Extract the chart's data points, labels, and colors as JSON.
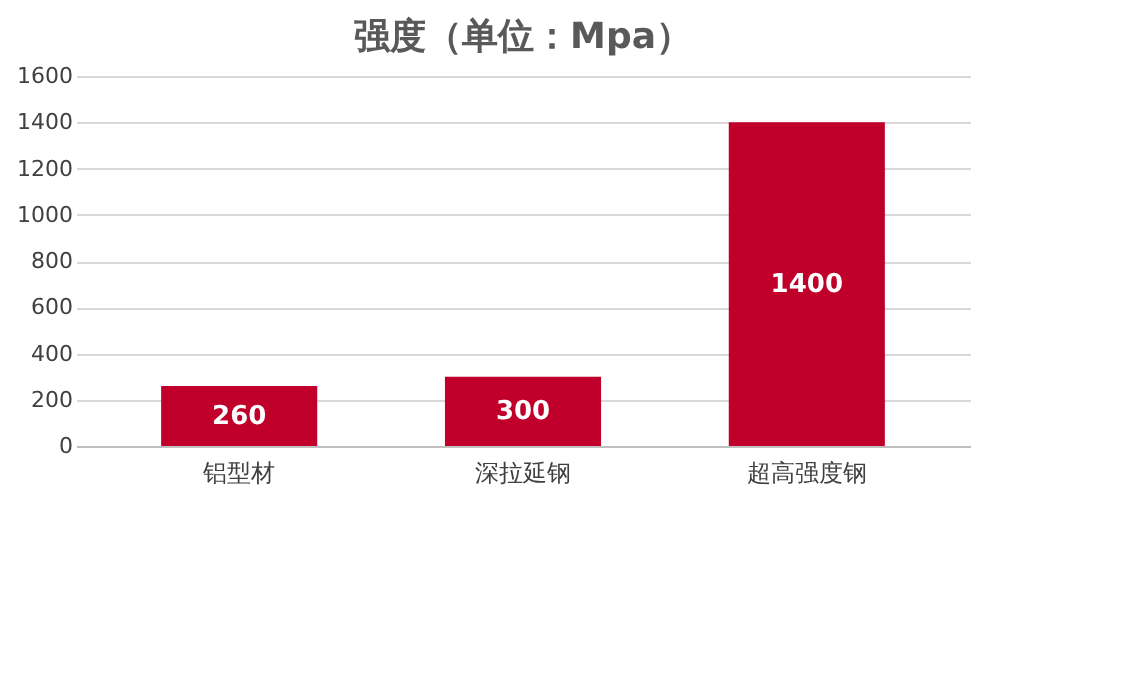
{
  "chart_data": {
    "type": "bar",
    "title": "强度（单位：Mpa）",
    "categories": [
      "铝型材",
      "深拉延钢",
      "超高强度钢"
    ],
    "values": [
      260,
      300,
      1400
    ],
    "color": "#c0002b",
    "ylim": [
      0,
      1600
    ],
    "yticks": [
      0,
      200,
      400,
      600,
      800,
      1000,
      1200,
      1400,
      1600
    ],
    "grid": "y",
    "data_labels": true
  }
}
